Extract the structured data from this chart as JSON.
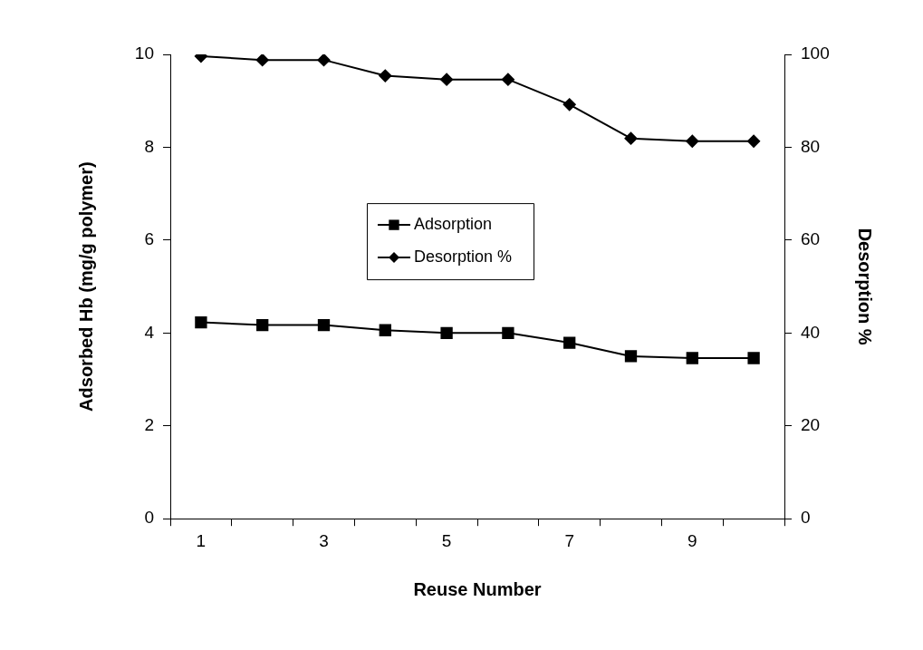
{
  "chart_data": {
    "type": "line",
    "xlabel": "Reuse Number",
    "ylabel": "Adsorbed Hb (mg/g polymer)",
    "y2label": "Desorption %",
    "x": [
      1,
      2,
      3,
      4,
      5,
      6,
      7,
      8,
      9,
      10
    ],
    "xlim": [
      0.5,
      10.5
    ],
    "xticks": [
      {
        "value": 0.5,
        "label": null
      },
      1,
      {
        "value": 1.5,
        "label": null
      },
      {
        "value": 2.5,
        "label": null
      },
      3,
      {
        "value": 3.5,
        "label": null
      },
      {
        "value": 4.5,
        "label": null
      },
      5,
      {
        "value": 5.5,
        "label": null
      },
      {
        "value": 6.5,
        "label": null
      },
      7,
      {
        "value": 7.5,
        "label": null
      },
      {
        "value": 8.5,
        "label": null
      },
      9,
      {
        "value": 9.5,
        "label": null
      },
      {
        "value": 10.5,
        "label": null
      }
    ],
    "ylim": [
      0,
      10
    ],
    "yticks": [
      0,
      2,
      4,
      6,
      8,
      10
    ],
    "y2lim": [
      0,
      100
    ],
    "y2ticks": [
      0,
      20,
      40,
      60,
      80,
      100
    ],
    "series": [
      {
        "name": "Adsorption",
        "color": "#000000",
        "marker": "square",
        "values": [
          4.23,
          4.17,
          4.17,
          4.06,
          4.0,
          4.0,
          3.79,
          3.5,
          3.46,
          3.46
        ]
      },
      {
        "name": "Desorption %",
        "color": "#000000",
        "marker": "diamond",
        "axis": "y2",
        "values": [
          99.6,
          98.8,
          98.8,
          95.4,
          94.6,
          94.6,
          89.2,
          81.9,
          81.3,
          81.3
        ]
      }
    ],
    "grid": false,
    "legend": "center",
    "line_style": "solid"
  }
}
